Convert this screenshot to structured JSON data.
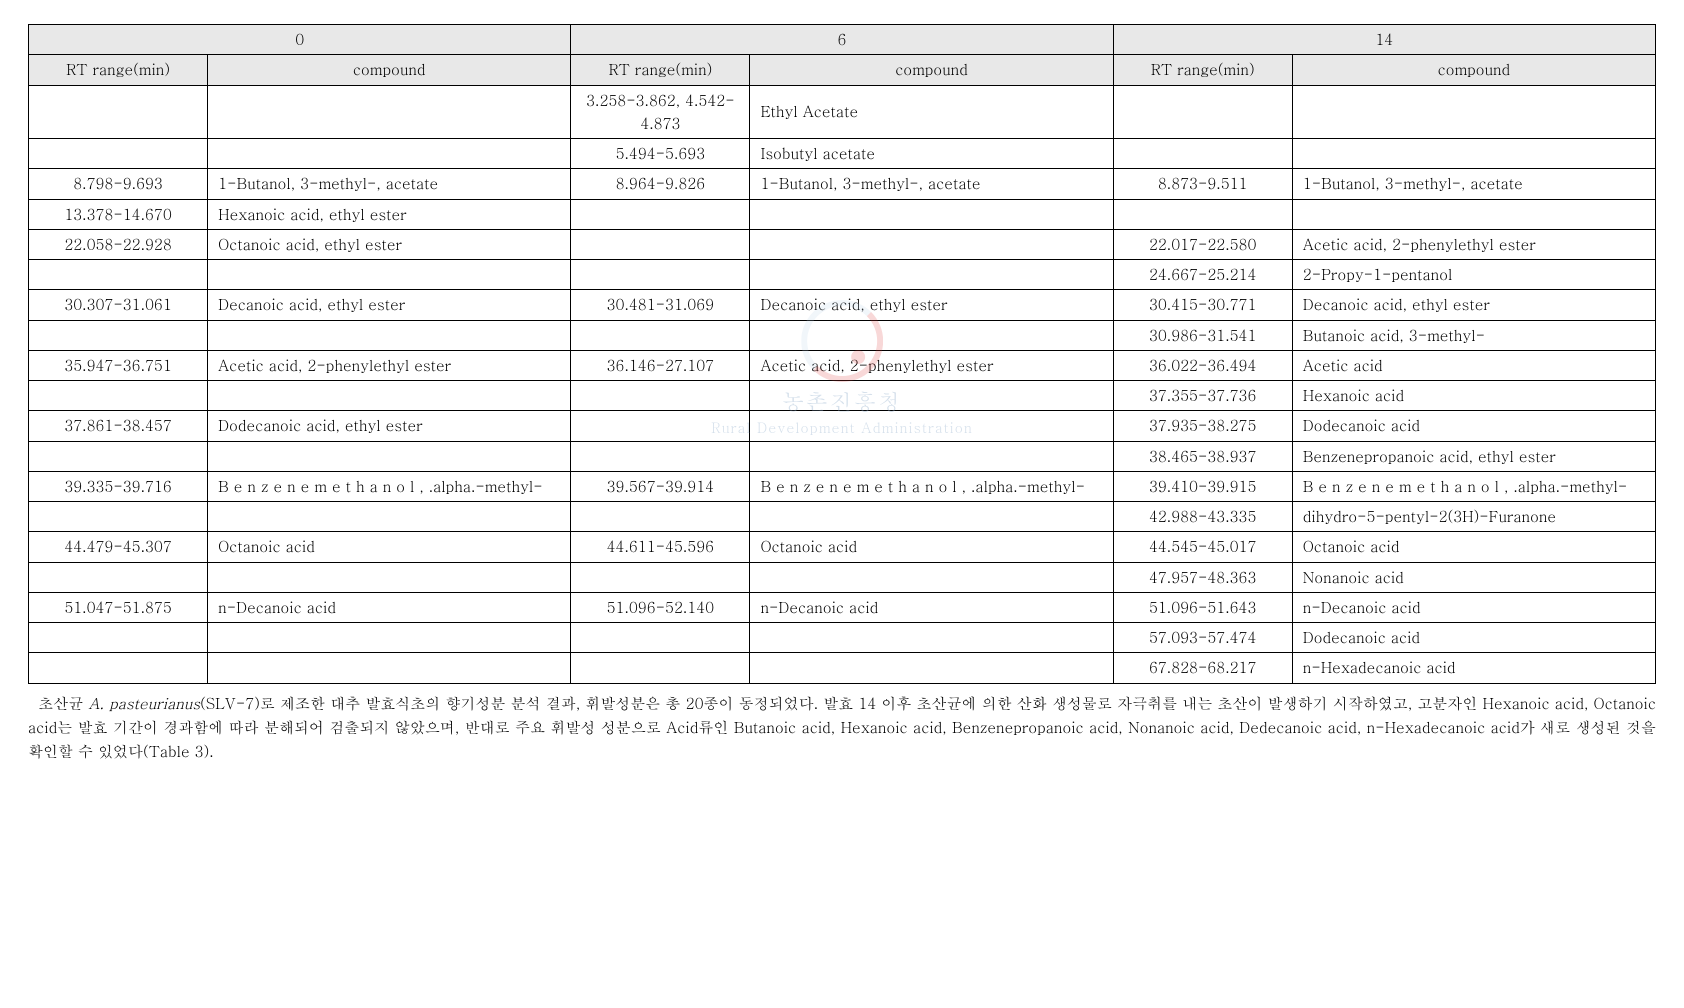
{
  "table": {
    "header_bg": "#e8e8e8",
    "border_color": "#000000",
    "font_size_pt": 11,
    "groups": [
      "0",
      "6",
      "14"
    ],
    "subheaders": [
      "RT range(min)",
      "compound"
    ],
    "col_widths_pct": [
      11,
      22.3,
      11,
      22.3,
      11,
      22.3
    ],
    "rows": [
      {
        "g0_rt": "",
        "g0_c": "",
        "g6_rt": "3.258-3.862, 4.542-4.873",
        "g6_c": "Ethyl Acetate",
        "g14_rt": "",
        "g14_c": ""
      },
      {
        "g0_rt": "",
        "g0_c": "",
        "g6_rt": "5.494-5.693",
        "g6_c": "Isobutyl acetate",
        "g14_rt": "",
        "g14_c": ""
      },
      {
        "g0_rt": "8.798-9.693",
        "g0_c": "1-Butanol, 3-methyl-, acetate",
        "g6_rt": "8.964-9.826",
        "g6_c": "1-Butanol, 3-methyl-, acetate",
        "g14_rt": "8.873-9.511",
        "g14_c": "1-Butanol, 3-methyl-, acetate"
      },
      {
        "g0_rt": "13.378-14.670",
        "g0_c": "Hexanoic acid, ethyl ester",
        "g6_rt": "",
        "g6_c": "",
        "g14_rt": "",
        "g14_c": ""
      },
      {
        "g0_rt": "22.058-22.928",
        "g0_c": "Octanoic acid, ethyl ester",
        "g6_rt": "",
        "g6_c": "",
        "g14_rt": "22.017-22.580",
        "g14_c": "Acetic acid, 2-phenylethyl ester"
      },
      {
        "g0_rt": "",
        "g0_c": "",
        "g6_rt": "",
        "g6_c": "",
        "g14_rt": "24.667-25.214",
        "g14_c": "2-Propy-1-pentanol"
      },
      {
        "g0_rt": "30.307-31.061",
        "g0_c": "Decanoic acid, ethyl ester",
        "g6_rt": "30.481-31.069",
        "g6_c": "Decanoic acid, ethyl ester",
        "g14_rt": "30.415-30.771",
        "g14_c": "Decanoic acid, ethyl ester"
      },
      {
        "g0_rt": "",
        "g0_c": "",
        "g6_rt": "",
        "g6_c": "",
        "g14_rt": "30.986-31.541",
        "g14_c": "Butanoic acid, 3-methyl-"
      },
      {
        "g0_rt": "35.947-36.751",
        "g0_c": "Acetic acid, 2-phenylethyl ester",
        "g6_rt": "36.146-27.107",
        "g6_c": "Acetic acid, 2-phenylethyl ester",
        "g14_rt": "36.022-36.494",
        "g14_c": "Acetic acid"
      },
      {
        "g0_rt": "",
        "g0_c": "",
        "g6_rt": "",
        "g6_c": "",
        "g14_rt": "37.355-37.736",
        "g14_c": "Hexanoic acid"
      },
      {
        "g0_rt": "37.861-38.457",
        "g0_c": "Dodecanoic acid, ethyl ester",
        "g6_rt": "",
        "g6_c": "",
        "g14_rt": "37.935-38.275",
        "g14_c": "Dodecanoic acid"
      },
      {
        "g0_rt": "",
        "g0_c": "",
        "g6_rt": "",
        "g6_c": "",
        "g14_rt": "38.465-38.937",
        "g14_c": "Benzenepropanoic acid, ethyl ester"
      },
      {
        "g0_rt": "39.335-39.716",
        "g0_c": "B e n z e n e m e t h a n o l , .alpha.-methyl-",
        "g6_rt": "39.567-39.914",
        "g6_c": "B e n z e n e m e t h a n o l , .alpha.-methyl-",
        "g14_rt": "39.410-39.915",
        "g14_c": "B e n z e n e m e t h a n o l , .alpha.-methyl-"
      },
      {
        "g0_rt": "",
        "g0_c": "",
        "g6_rt": "",
        "g6_c": "",
        "g14_rt": "42.988-43.335",
        "g14_c": "dihydro-5-pentyl-2(3H)-Furanone"
      },
      {
        "g0_rt": "44.479-45.307",
        "g0_c": "Octanoic acid",
        "g6_rt": "44.611-45.596",
        "g6_c": "Octanoic acid",
        "g14_rt": "44.545-45.017",
        "g14_c": "Octanoic acid"
      },
      {
        "g0_rt": "",
        "g0_c": "",
        "g6_rt": "",
        "g6_c": "",
        "g14_rt": "47.957-48.363",
        "g14_c": "Nonanoic acid"
      },
      {
        "g0_rt": "51.047-51.875",
        "g0_c": "n-Decanoic acid",
        "g6_rt": "51.096-52.140",
        "g6_c": "n-Decanoic acid",
        "g14_rt": "51.096-51.643",
        "g14_c": "n-Decanoic acid"
      },
      {
        "g0_rt": "",
        "g0_c": "",
        "g6_rt": "",
        "g6_c": "",
        "g14_rt": "57.093-57.474",
        "g14_c": "Dodecanoic acid"
      },
      {
        "g0_rt": "",
        "g0_c": "",
        "g6_rt": "",
        "g6_c": "",
        "g14_rt": "67.828-68.217",
        "g14_c": "n-Hexadecanoic acid"
      }
    ]
  },
  "caption": {
    "line1_prefix": "초산균 ",
    "line1_italic": "A. pasteurianus",
    "line1_rest": "(SLV-7)로 제조한 대추 발효식초의 향기성분 분석 결과, 휘발성분은 총 20종이 동정되었다. 발효 14 이후 초산균에 의한 산화 생성물로 자극취를 내는 초산이 발생하기 시작하였고, 고분자인 Hexanoic acid, Octanoic acid는 발효 기간이 경과함에 따라 분해되어 검출되지 않았으며, 반대로 주요 휘발성 성분으로 Acid류인 Butanoic acid, Hexanoic acid, Benzenepropanoic acid, Nonanoic acid, Dedecanoic acid, n-Hexadecanoic acid가 새로 생성된 것을 확인할 수 있었다(Table 3)."
  },
  "watermark": {
    "main": "농촌진흥청",
    "sub": "Rural Development Administration"
  }
}
